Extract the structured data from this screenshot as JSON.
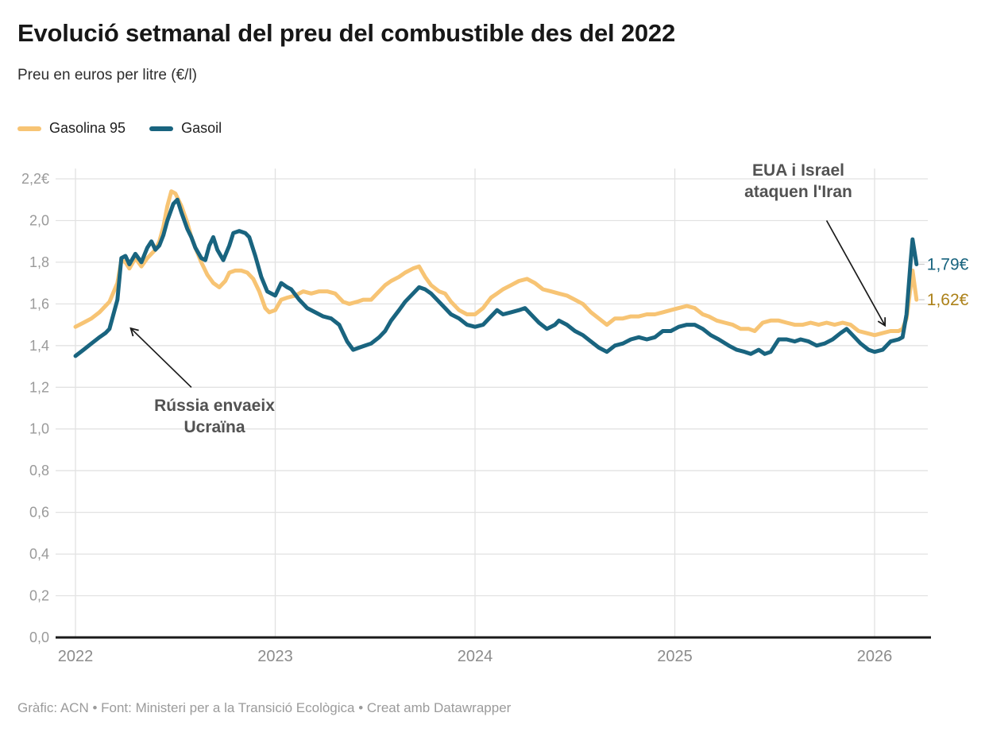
{
  "header": {
    "title": "Evolució setmanal del preu del combustible des del 2022",
    "subtitle": "Preu en euros per litre (€/l)"
  },
  "footer": {
    "credit": "Gràfic: ACN • Font: Ministeri per a la Transició Ecològica • Creat amb Datawrapper"
  },
  "chart_data": {
    "type": "line",
    "title": "Evolució setmanal del preu del combustible des del 2022",
    "subtitle": "Preu en euros per litre (€/l)",
    "xlabel": "",
    "ylabel": "€/l",
    "grid": true,
    "legend_position": "top-left",
    "xlim": [
      2021.92,
      2026.27
    ],
    "ylim": [
      0,
      2.2
    ],
    "x_ticks": [
      2022,
      2023,
      2024,
      2025,
      2026
    ],
    "x_tick_labels": [
      "2022",
      "2023",
      "2024",
      "2025",
      "2026"
    ],
    "y_ticks": [
      0,
      0.2,
      0.4,
      0.6,
      0.8,
      1.0,
      1.2,
      1.4,
      1.6,
      1.8,
      2.0,
      2.2
    ],
    "y_tick_labels": [
      "0,0",
      "0,2",
      "0,4",
      "0,6",
      "0,8",
      "1,0",
      "1,2",
      "1,4",
      "1,6",
      "1,8",
      "2,0",
      "2,2€"
    ],
    "colors": {
      "gasolina": "#F7C474",
      "gasolina_label": "#AC8119",
      "gasoil": "#19647F",
      "axis": "#1a1a1a",
      "gridline": "#e2e2e2",
      "tick_text": "#9a9a9a",
      "annotation": "#525252"
    },
    "series": [
      {
        "name": "Gasolina 95",
        "color": "#F7C474",
        "label_color": "#AC8119",
        "end_label": "1,62€",
        "points": [
          [
            2022.0,
            1.49
          ],
          [
            2022.04,
            1.51
          ],
          [
            2022.08,
            1.53
          ],
          [
            2022.12,
            1.56
          ],
          [
            2022.15,
            1.59
          ],
          [
            2022.17,
            1.61
          ],
          [
            2022.21,
            1.7
          ],
          [
            2022.23,
            1.81
          ],
          [
            2022.25,
            1.8
          ],
          [
            2022.27,
            1.77
          ],
          [
            2022.3,
            1.82
          ],
          [
            2022.33,
            1.78
          ],
          [
            2022.36,
            1.82
          ],
          [
            2022.38,
            1.84
          ],
          [
            2022.4,
            1.86
          ],
          [
            2022.42,
            1.9
          ],
          [
            2022.44,
            1.97
          ],
          [
            2022.46,
            2.07
          ],
          [
            2022.48,
            2.14
          ],
          [
            2022.5,
            2.13
          ],
          [
            2022.53,
            2.07
          ],
          [
            2022.56,
            1.99
          ],
          [
            2022.58,
            1.92
          ],
          [
            2022.6,
            1.87
          ],
          [
            2022.63,
            1.8
          ],
          [
            2022.66,
            1.74
          ],
          [
            2022.69,
            1.7
          ],
          [
            2022.72,
            1.68
          ],
          [
            2022.75,
            1.71
          ],
          [
            2022.77,
            1.75
          ],
          [
            2022.8,
            1.76
          ],
          [
            2022.83,
            1.76
          ],
          [
            2022.86,
            1.75
          ],
          [
            2022.89,
            1.72
          ],
          [
            2022.92,
            1.66
          ],
          [
            2022.95,
            1.58
          ],
          [
            2022.97,
            1.56
          ],
          [
            2023.0,
            1.57
          ],
          [
            2023.03,
            1.62
          ],
          [
            2023.06,
            1.63
          ],
          [
            2023.1,
            1.64
          ],
          [
            2023.14,
            1.66
          ],
          [
            2023.18,
            1.65
          ],
          [
            2023.22,
            1.66
          ],
          [
            2023.26,
            1.66
          ],
          [
            2023.3,
            1.65
          ],
          [
            2023.34,
            1.61
          ],
          [
            2023.37,
            1.6
          ],
          [
            2023.41,
            1.61
          ],
          [
            2023.44,
            1.62
          ],
          [
            2023.48,
            1.62
          ],
          [
            2023.52,
            1.66
          ],
          [
            2023.55,
            1.69
          ],
          [
            2023.58,
            1.71
          ],
          [
            2023.62,
            1.73
          ],
          [
            2023.65,
            1.75
          ],
          [
            2023.69,
            1.77
          ],
          [
            2023.72,
            1.78
          ],
          [
            2023.75,
            1.73
          ],
          [
            2023.78,
            1.69
          ],
          [
            2023.82,
            1.66
          ],
          [
            2023.85,
            1.65
          ],
          [
            2023.88,
            1.61
          ],
          [
            2023.92,
            1.57
          ],
          [
            2023.96,
            1.55
          ],
          [
            2024.0,
            1.55
          ],
          [
            2024.04,
            1.58
          ],
          [
            2024.08,
            1.63
          ],
          [
            2024.11,
            1.65
          ],
          [
            2024.14,
            1.67
          ],
          [
            2024.18,
            1.69
          ],
          [
            2024.22,
            1.71
          ],
          [
            2024.26,
            1.72
          ],
          [
            2024.3,
            1.7
          ],
          [
            2024.34,
            1.67
          ],
          [
            2024.38,
            1.66
          ],
          [
            2024.42,
            1.65
          ],
          [
            2024.46,
            1.64
          ],
          [
            2024.5,
            1.62
          ],
          [
            2024.54,
            1.6
          ],
          [
            2024.58,
            1.56
          ],
          [
            2024.62,
            1.53
          ],
          [
            2024.66,
            1.5
          ],
          [
            2024.7,
            1.53
          ],
          [
            2024.74,
            1.53
          ],
          [
            2024.78,
            1.54
          ],
          [
            2024.82,
            1.54
          ],
          [
            2024.86,
            1.55
          ],
          [
            2024.9,
            1.55
          ],
          [
            2024.94,
            1.56
          ],
          [
            2024.98,
            1.57
          ],
          [
            2025.02,
            1.58
          ],
          [
            2025.06,
            1.59
          ],
          [
            2025.1,
            1.58
          ],
          [
            2025.14,
            1.55
          ],
          [
            2025.17,
            1.54
          ],
          [
            2025.21,
            1.52
          ],
          [
            2025.25,
            1.51
          ],
          [
            2025.29,
            1.5
          ],
          [
            2025.33,
            1.48
          ],
          [
            2025.37,
            1.48
          ],
          [
            2025.4,
            1.47
          ],
          [
            2025.44,
            1.51
          ],
          [
            2025.48,
            1.52
          ],
          [
            2025.52,
            1.52
          ],
          [
            2025.56,
            1.51
          ],
          [
            2025.6,
            1.5
          ],
          [
            2025.64,
            1.5
          ],
          [
            2025.68,
            1.51
          ],
          [
            2025.72,
            1.5
          ],
          [
            2025.76,
            1.51
          ],
          [
            2025.8,
            1.5
          ],
          [
            2025.84,
            1.51
          ],
          [
            2025.88,
            1.5
          ],
          [
            2025.92,
            1.47
          ],
          [
            2025.96,
            1.46
          ],
          [
            2026.0,
            1.45
          ],
          [
            2026.04,
            1.46
          ],
          [
            2026.08,
            1.47
          ],
          [
            2026.12,
            1.47
          ],
          [
            2026.14,
            1.48
          ],
          [
            2026.16,
            1.53
          ],
          [
            2026.18,
            1.68
          ],
          [
            2026.19,
            1.76
          ],
          [
            2026.21,
            1.62
          ]
        ]
      },
      {
        "name": "Gasoil",
        "color": "#19647F",
        "label_color": "#19647F",
        "end_label": "1,79€",
        "points": [
          [
            2022.0,
            1.35
          ],
          [
            2022.04,
            1.38
          ],
          [
            2022.08,
            1.41
          ],
          [
            2022.12,
            1.44
          ],
          [
            2022.15,
            1.46
          ],
          [
            2022.17,
            1.48
          ],
          [
            2022.21,
            1.62
          ],
          [
            2022.23,
            1.82
          ],
          [
            2022.25,
            1.83
          ],
          [
            2022.27,
            1.79
          ],
          [
            2022.3,
            1.84
          ],
          [
            2022.33,
            1.8
          ],
          [
            2022.36,
            1.87
          ],
          [
            2022.38,
            1.9
          ],
          [
            2022.4,
            1.86
          ],
          [
            2022.42,
            1.88
          ],
          [
            2022.44,
            1.93
          ],
          [
            2022.46,
            2.0
          ],
          [
            2022.49,
            2.08
          ],
          [
            2022.51,
            2.1
          ],
          [
            2022.53,
            2.04
          ],
          [
            2022.56,
            1.96
          ],
          [
            2022.58,
            1.92
          ],
          [
            2022.6,
            1.87
          ],
          [
            2022.63,
            1.82
          ],
          [
            2022.65,
            1.81
          ],
          [
            2022.67,
            1.88
          ],
          [
            2022.69,
            1.92
          ],
          [
            2022.71,
            1.86
          ],
          [
            2022.74,
            1.81
          ],
          [
            2022.77,
            1.88
          ],
          [
            2022.79,
            1.94
          ],
          [
            2022.82,
            1.95
          ],
          [
            2022.85,
            1.94
          ],
          [
            2022.87,
            1.92
          ],
          [
            2022.9,
            1.83
          ],
          [
            2022.93,
            1.73
          ],
          [
            2022.96,
            1.66
          ],
          [
            2023.0,
            1.64
          ],
          [
            2023.03,
            1.7
          ],
          [
            2023.06,
            1.68
          ],
          [
            2023.08,
            1.67
          ],
          [
            2023.12,
            1.62
          ],
          [
            2023.16,
            1.58
          ],
          [
            2023.2,
            1.56
          ],
          [
            2023.24,
            1.54
          ],
          [
            2023.28,
            1.53
          ],
          [
            2023.32,
            1.5
          ],
          [
            2023.36,
            1.42
          ],
          [
            2023.39,
            1.38
          ],
          [
            2023.42,
            1.39
          ],
          [
            2023.45,
            1.4
          ],
          [
            2023.48,
            1.41
          ],
          [
            2023.52,
            1.44
          ],
          [
            2023.55,
            1.47
          ],
          [
            2023.58,
            1.52
          ],
          [
            2023.62,
            1.57
          ],
          [
            2023.65,
            1.61
          ],
          [
            2023.69,
            1.65
          ],
          [
            2023.72,
            1.68
          ],
          [
            2023.75,
            1.67
          ],
          [
            2023.78,
            1.65
          ],
          [
            2023.82,
            1.61
          ],
          [
            2023.85,
            1.58
          ],
          [
            2023.88,
            1.55
          ],
          [
            2023.92,
            1.53
          ],
          [
            2023.96,
            1.5
          ],
          [
            2024.0,
            1.49
          ],
          [
            2024.04,
            1.5
          ],
          [
            2024.08,
            1.54
          ],
          [
            2024.11,
            1.57
          ],
          [
            2024.14,
            1.55
          ],
          [
            2024.18,
            1.56
          ],
          [
            2024.22,
            1.57
          ],
          [
            2024.25,
            1.58
          ],
          [
            2024.28,
            1.55
          ],
          [
            2024.32,
            1.51
          ],
          [
            2024.36,
            1.48
          ],
          [
            2024.4,
            1.5
          ],
          [
            2024.42,
            1.52
          ],
          [
            2024.46,
            1.5
          ],
          [
            2024.5,
            1.47
          ],
          [
            2024.54,
            1.45
          ],
          [
            2024.58,
            1.42
          ],
          [
            2024.62,
            1.39
          ],
          [
            2024.66,
            1.37
          ],
          [
            2024.7,
            1.4
          ],
          [
            2024.74,
            1.41
          ],
          [
            2024.78,
            1.43
          ],
          [
            2024.82,
            1.44
          ],
          [
            2024.86,
            1.43
          ],
          [
            2024.9,
            1.44
          ],
          [
            2024.94,
            1.47
          ],
          [
            2024.98,
            1.47
          ],
          [
            2025.02,
            1.49
          ],
          [
            2025.06,
            1.5
          ],
          [
            2025.1,
            1.5
          ],
          [
            2025.14,
            1.48
          ],
          [
            2025.18,
            1.45
          ],
          [
            2025.22,
            1.43
          ],
          [
            2025.27,
            1.4
          ],
          [
            2025.31,
            1.38
          ],
          [
            2025.35,
            1.37
          ],
          [
            2025.38,
            1.36
          ],
          [
            2025.42,
            1.38
          ],
          [
            2025.45,
            1.36
          ],
          [
            2025.48,
            1.37
          ],
          [
            2025.52,
            1.43
          ],
          [
            2025.56,
            1.43
          ],
          [
            2025.6,
            1.42
          ],
          [
            2025.63,
            1.43
          ],
          [
            2025.67,
            1.42
          ],
          [
            2025.71,
            1.4
          ],
          [
            2025.75,
            1.41
          ],
          [
            2025.79,
            1.43
          ],
          [
            2025.83,
            1.46
          ],
          [
            2025.86,
            1.48
          ],
          [
            2025.9,
            1.44
          ],
          [
            2025.93,
            1.41
          ],
          [
            2025.97,
            1.38
          ],
          [
            2026.0,
            1.37
          ],
          [
            2026.04,
            1.38
          ],
          [
            2026.08,
            1.42
          ],
          [
            2026.12,
            1.43
          ],
          [
            2026.14,
            1.44
          ],
          [
            2026.16,
            1.55
          ],
          [
            2026.18,
            1.8
          ],
          [
            2026.19,
            1.91
          ],
          [
            2026.21,
            1.79
          ]
        ]
      }
    ],
    "annotations": [
      {
        "id": "russia",
        "lines": [
          "Rússia envaeix",
          "Ucraïna"
        ],
        "arrow": {
          "from": [
            2022.58,
            1.2
          ],
          "to": [
            2022.28,
            1.48
          ]
        }
      },
      {
        "id": "iran",
        "lines": [
          "EUA i Israel",
          "ataquen l'Iran"
        ],
        "arrow": {
          "from": [
            2025.76,
            2.0
          ],
          "to": [
            2026.05,
            1.5
          ]
        }
      }
    ]
  }
}
